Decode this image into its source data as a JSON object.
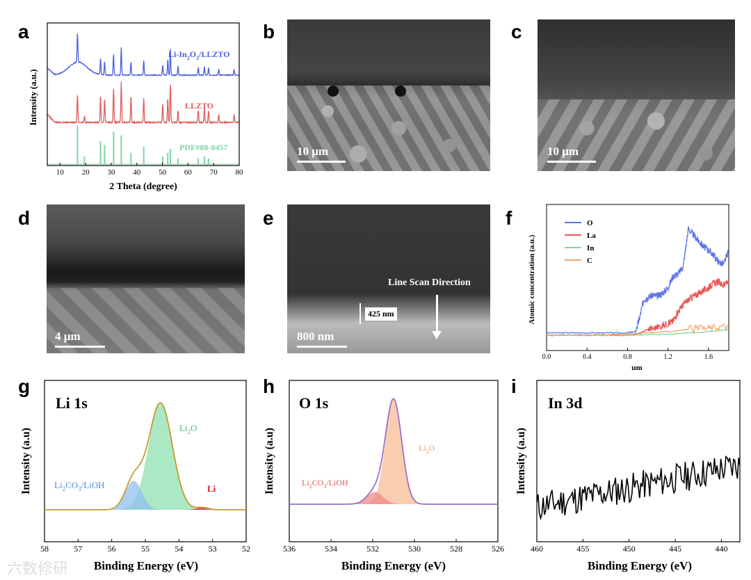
{
  "panel_labels": [
    "a",
    "b",
    "c",
    "d",
    "e",
    "f",
    "g",
    "h",
    "i"
  ],
  "panel_a": {
    "traces": [
      {
        "name": "Li-In2O3/LLZTO",
        "label_main": "Li-In",
        "label_sub1": "2",
        "label_mid": "O",
        "label_sub2": "3",
        "label_end": "/LLZTO",
        "color": "#4a5ee0"
      },
      {
        "name": "LLZTO",
        "label": "LLZTO",
        "color": "#e05a5a"
      },
      {
        "name": "PDF#80-0457",
        "label": "PDF#80-0457",
        "color": "#7ed3a3"
      }
    ]
  },
  "panel_b": {
    "scale_label": "10 μm"
  },
  "panel_c": {
    "scale_label": "10 μm"
  },
  "panel_d": {
    "scale_label": "4 μm"
  },
  "panel_e": {
    "scale_label": "800 nm",
    "thickness_label": "425 nm",
    "direction_label": "Line Scan Direction"
  },
  "chart_data": [
    {
      "panel": "a",
      "type": "line",
      "title": "",
      "xlabel": "2 Theta (degree)",
      "ylabel": "Intensity (a.u.)",
      "xlim": [
        5,
        80
      ],
      "x_ticks": [
        10,
        20,
        30,
        40,
        50,
        60,
        70,
        80
      ],
      "series": [
        {
          "name": "Li-In2O3/LLZTO",
          "peaks": [
            [
              16.8,
              1.0
            ],
            [
              25.8,
              0.55
            ],
            [
              27.4,
              0.45
            ],
            [
              30.9,
              0.7
            ],
            [
              33.9,
              0.95
            ],
            [
              37.7,
              0.45
            ],
            [
              42.7,
              0.5
            ],
            [
              50.1,
              0.35
            ],
            [
              52.1,
              0.55
            ],
            [
              53.1,
              0.9
            ],
            [
              56.1,
              0.3
            ],
            [
              64.0,
              0.25
            ],
            [
              66.4,
              0.3
            ],
            [
              68.0,
              0.25
            ],
            [
              72.0,
              0.2
            ],
            [
              78.0,
              0.2
            ]
          ]
        },
        {
          "name": "LLZTO",
          "peaks": [
            [
              16.8,
              0.7
            ],
            [
              19.5,
              0.15
            ],
            [
              25.8,
              0.65
            ],
            [
              27.4,
              0.6
            ],
            [
              30.9,
              0.85
            ],
            [
              33.9,
              1.0
            ],
            [
              37.7,
              0.65
            ],
            [
              42.7,
              0.6
            ],
            [
              50.1,
              0.45
            ],
            [
              52.1,
              0.6
            ],
            [
              53.1,
              0.95
            ],
            [
              56.1,
              0.3
            ],
            [
              64.0,
              0.3
            ],
            [
              66.4,
              0.35
            ],
            [
              68.0,
              0.3
            ],
            [
              72.0,
              0.2
            ],
            [
              78.0,
              0.2
            ]
          ]
        },
        {
          "name": "PDF#80-0457",
          "sticks": [
            [
              16.8,
              1.0
            ],
            [
              19.5,
              0.2
            ],
            [
              25.8,
              0.6
            ],
            [
              27.4,
              0.5
            ],
            [
              30.9,
              0.85
            ],
            [
              33.9,
              0.75
            ],
            [
              37.7,
              0.3
            ],
            [
              42.7,
              0.45
            ],
            [
              50.1,
              0.2
            ],
            [
              52.1,
              0.3
            ],
            [
              53.1,
              0.4
            ],
            [
              56.1,
              0.15
            ],
            [
              64.0,
              0.15
            ],
            [
              66.4,
              0.2
            ],
            [
              68.0,
              0.15
            ]
          ]
        }
      ]
    },
    {
      "panel": "f",
      "type": "line",
      "xlabel": "μm",
      "ylabel": "Atomic concentration (a.u.)",
      "xlim": [
        0.0,
        1.8
      ],
      "x_ticks": [
        "0.0",
        "0.4",
        "0.8",
        "1.2",
        "1.6"
      ],
      "series": [
        {
          "name": "O",
          "color": "#5f76e8",
          "x": [
            0.0,
            0.2,
            0.4,
            0.6,
            0.8,
            0.88,
            0.92,
            0.96,
            1.0,
            1.05,
            1.1,
            1.15,
            1.2,
            1.25,
            1.3,
            1.35,
            1.4,
            1.45,
            1.5,
            1.55,
            1.6,
            1.65,
            1.7,
            1.75,
            1.8
          ],
          "y": [
            0.02,
            0.02,
            0.02,
            0.02,
            0.02,
            0.03,
            0.15,
            0.3,
            0.32,
            0.34,
            0.33,
            0.36,
            0.4,
            0.5,
            0.52,
            0.58,
            0.9,
            0.85,
            0.8,
            0.75,
            0.72,
            0.68,
            0.62,
            0.6,
            0.72
          ]
        },
        {
          "name": "La",
          "color": "#e95656",
          "x": [
            0.0,
            0.2,
            0.4,
            0.6,
            0.8,
            0.9,
            1.0,
            1.1,
            1.2,
            1.25,
            1.3,
            1.35,
            1.4,
            1.45,
            1.5,
            1.55,
            1.6,
            1.65,
            1.7,
            1.75,
            1.8
          ],
          "y": [
            0.0,
            0.0,
            0.0,
            0.0,
            0.0,
            0.01,
            0.05,
            0.07,
            0.1,
            0.12,
            0.2,
            0.26,
            0.3,
            0.33,
            0.35,
            0.38,
            0.4,
            0.44,
            0.45,
            0.42,
            0.46
          ]
        },
        {
          "name": "In",
          "color": "#7fd6a0",
          "x": [
            0.0,
            0.4,
            0.8,
            1.2,
            1.4,
            1.6,
            1.8
          ],
          "y": [
            0.0,
            0.0,
            0.0,
            0.01,
            0.02,
            0.03,
            0.05
          ]
        },
        {
          "name": "C",
          "color": "#f3a56a",
          "x": [
            0.0,
            0.4,
            0.8,
            1.2,
            1.4,
            1.6,
            1.8
          ],
          "y": [
            0.0,
            0.0,
            0.01,
            0.03,
            0.05,
            0.06,
            0.08
          ]
        }
      ]
    },
    {
      "panel": "g",
      "type": "area",
      "title": "Li 1s",
      "xlabel": "Binding Energy (eV)",
      "ylabel": "Intensity (a.u)",
      "xlim": [
        58,
        52
      ],
      "x_ticks": [
        58,
        57,
        56,
        55,
        54,
        53,
        52
      ],
      "series": [
        {
          "name": "Li2O",
          "label_main": "Li",
          "label_sub": "2",
          "label_end": "O",
          "color": "#8fe0b0",
          "center": 54.55,
          "height": 0.96,
          "width": 0.5
        },
        {
          "name": "Li2CO3/LiOH",
          "label_main": "Li",
          "label_sub1": "2",
          "label_mid": "CO",
          "label_sub2": "3",
          "label_end": "/LiOH",
          "color": "#8fc0f0",
          "center": 55.35,
          "height": 0.26,
          "width": 0.35
        },
        {
          "name": "Li",
          "label": "Li",
          "color": "#c8192e",
          "center": 53.3,
          "height": 0.02,
          "width": 0.25
        }
      ]
    },
    {
      "panel": "h",
      "type": "area",
      "title": "O 1s",
      "xlabel": "Binding Energy (eV)",
      "ylabel": "Intensity (a.u)",
      "xlim": [
        536,
        526
      ],
      "x_ticks": [
        536,
        534,
        532,
        530,
        528,
        526
      ],
      "series": [
        {
          "name": "Li2O",
          "label_main": "Li",
          "label_sub": "2",
          "label_end": "O",
          "color": "#f8bb95",
          "center": 531.0,
          "height": 0.94,
          "width": 0.55
        },
        {
          "name": "Li2CO3/LiOH",
          "label_main": "Li",
          "label_sub1": "2",
          "label_mid": "CO",
          "label_sub2": "3",
          "label_end": "/LiOH",
          "color": "#f08a8a",
          "center": 531.9,
          "height": 0.11,
          "width": 0.55
        }
      ]
    },
    {
      "panel": "i",
      "type": "line",
      "title": "In 3d",
      "xlabel": "Binding Energy (eV)",
      "ylabel": "Intensity (a.u)",
      "xlim": [
        460,
        438
      ],
      "x_ticks": [
        460,
        455,
        450,
        445,
        440
      ],
      "series": [
        {
          "name": "In 3d",
          "noise": true,
          "start": 0.25,
          "end": 0.55
        }
      ]
    }
  ],
  "watermark": "六数修研"
}
